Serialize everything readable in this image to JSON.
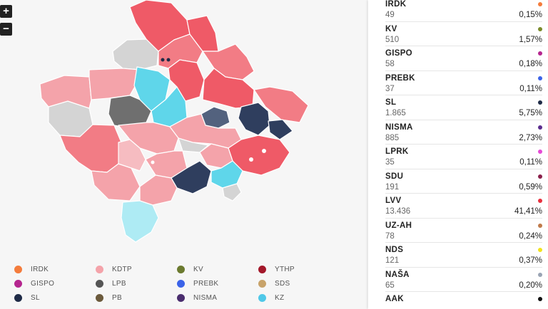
{
  "map": {
    "zoom_in_label": "+",
    "zoom_out_label": "−",
    "colors": {
      "lvv_dark": "#ef5a67",
      "lvv_mid": "#f27c85",
      "kdtp": "#f4a3aa",
      "kdtp_light": "#f6bcc1",
      "sl": "#2f3e5e",
      "sl_alt": "#53627e",
      "lpb": "#6f6f6f",
      "kz": "#5fd6ea",
      "kz_light": "#aeebf4",
      "none": "#d4d4d4"
    }
  },
  "legend": {
    "items": [
      {
        "label": "IRDK",
        "color": "#f47c3c"
      },
      {
        "label": "KDTP",
        "color": "#f4a3aa"
      },
      {
        "label": "KV",
        "color": "#6b7a2f"
      },
      {
        "label": "YTHP",
        "color": "#a3182a"
      },
      {
        "label": "GISPO",
        "color": "#b5268f"
      },
      {
        "label": "LPB",
        "color": "#555555"
      },
      {
        "label": "PREBK",
        "color": "#3b63e8"
      },
      {
        "label": "SDS",
        "color": "#c8a36a"
      },
      {
        "label": "SL",
        "color": "#1f2b47"
      },
      {
        "label": "PB",
        "color": "#6b5a3c"
      },
      {
        "label": "NISMA",
        "color": "#4a2d6e"
      },
      {
        "label": "KZ",
        "color": "#4fc8e8"
      }
    ]
  },
  "results": {
    "parties": [
      {
        "name": "IRDK",
        "votes": "49",
        "percent": "0,15%",
        "color": "#f47c3c"
      },
      {
        "name": "KV",
        "votes": "510",
        "percent": "1,57%",
        "color": "#7a8a2a"
      },
      {
        "name": "GISPO",
        "votes": "58",
        "percent": "0,18%",
        "color": "#b5268f"
      },
      {
        "name": "PREBK",
        "votes": "37",
        "percent": "0,11%",
        "color": "#3b63e8"
      },
      {
        "name": "SL",
        "votes": "1.865",
        "percent": "5,75%",
        "color": "#1f2b47"
      },
      {
        "name": "NISMA",
        "votes": "885",
        "percent": "2,73%",
        "color": "#5b2d8e"
      },
      {
        "name": "LPRK",
        "votes": "35",
        "percent": "0,11%",
        "color": "#e64ad6"
      },
      {
        "name": "SDU",
        "votes": "191",
        "percent": "0,59%",
        "color": "#8a1f4a"
      },
      {
        "name": "LVV",
        "votes": "13.436",
        "percent": "41,41%",
        "color": "#e8313f"
      },
      {
        "name": "UZ-AH",
        "votes": "78",
        "percent": "0,24%",
        "color": "#c07a4a"
      },
      {
        "name": "NDS",
        "votes": "121",
        "percent": "0,37%",
        "color": "#f2e21e"
      },
      {
        "name": "NAŠA",
        "votes": "65",
        "percent": "0,20%",
        "color": "#9aa4b4"
      },
      {
        "name": "AAK",
        "votes": "",
        "percent": "",
        "color": "#111111"
      }
    ]
  }
}
